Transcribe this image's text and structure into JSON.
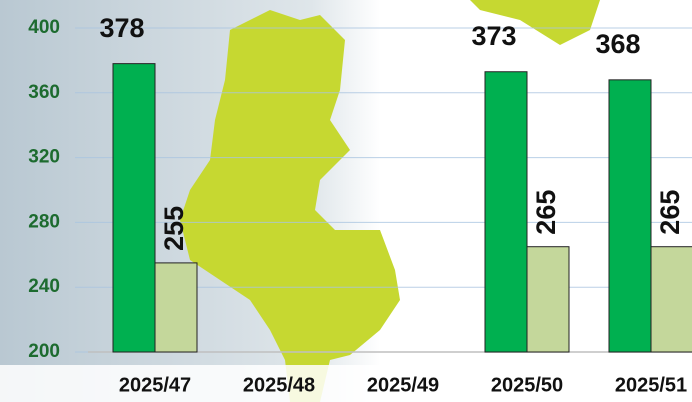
{
  "chart_data": {
    "type": "bar",
    "categories": [
      "2025/47",
      "2025/48",
      "2025/49",
      "2025/50",
      "2025/51"
    ],
    "series": [
      {
        "color": "#00b050",
        "values": [
          378,
          null,
          null,
          373,
          368
        ]
      },
      {
        "color": "#c4d79b",
        "values": [
          255,
          null,
          null,
          265,
          265
        ]
      }
    ],
    "ylim": [
      200,
      400
    ],
    "yticks": [
      200,
      240,
      280,
      320,
      360,
      400
    ],
    "grid": true
  }
}
